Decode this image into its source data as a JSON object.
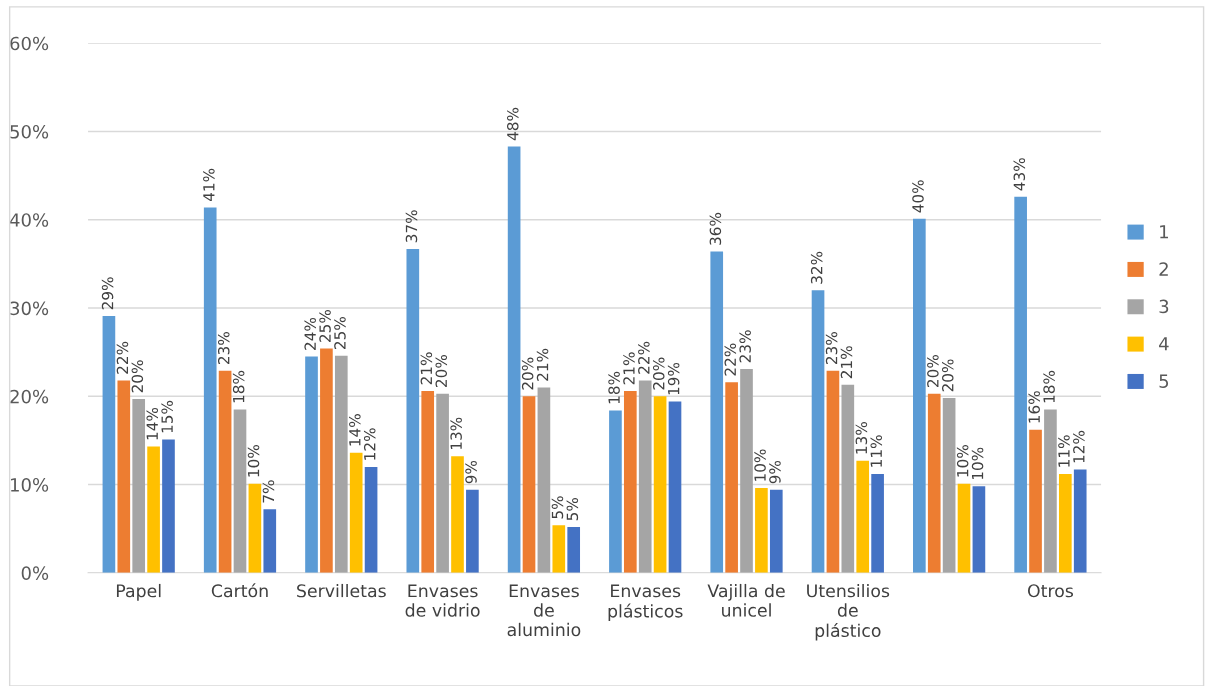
{
  "chart_data": {
    "type": "bar",
    "categories": [
      "Papel",
      "Cartón",
      "Servilletas",
      "Envases\nde vidrio",
      "Envases\nde\naluminio",
      "Envases\nplásticos",
      "Vajilla de\nunicel",
      "Utensilios\nde\nplástico",
      null,
      "Otros"
    ],
    "series": [
      {
        "name": "1",
        "color": "#5b9bd5",
        "values": [
          29.1,
          41.4,
          24.5,
          36.7,
          48.3,
          18.4,
          36.4,
          32.0,
          40.1,
          42.6
        ],
        "value_labels": [
          "29%",
          "41%",
          "24%",
          "37%",
          "48%",
          "18%",
          "36%",
          "32%",
          "40%",
          "43%"
        ]
      },
      {
        "name": "2",
        "color": "#ed7d31",
        "values": [
          21.8,
          22.9,
          25.4,
          20.6,
          20.0,
          20.6,
          21.6,
          22.9,
          20.3,
          16.2
        ],
        "value_labels": [
          "22%",
          "23%",
          "25%",
          "21%",
          "20%",
          "21%",
          "22%",
          "23%",
          "20%",
          "16%"
        ]
      },
      {
        "name": "3",
        "color": "#a5a5a5",
        "values": [
          19.7,
          18.5,
          24.6,
          20.3,
          21.0,
          21.8,
          23.1,
          21.3,
          19.8,
          18.5
        ],
        "value_labels": [
          "20%",
          "18%",
          "25%",
          "20%",
          "21%",
          "22%",
          "23%",
          "21%",
          "20%",
          "18%"
        ]
      },
      {
        "name": "4",
        "color": "#ffc000",
        "values": [
          14.3,
          10.1,
          13.6,
          13.2,
          5.4,
          20.0,
          9.6,
          12.7,
          10.1,
          11.2
        ],
        "value_labels": [
          "14%",
          "10%",
          "14%",
          "13%",
          "5%",
          "20%",
          "10%",
          "13%",
          "10%",
          "11%"
        ]
      },
      {
        "name": "5",
        "color": "#4472c4",
        "values": [
          15.1,
          7.2,
          12.0,
          9.4,
          5.2,
          19.4,
          9.4,
          11.2,
          9.8,
          11.7
        ],
        "value_labels": [
          "15%",
          "7%",
          "12%",
          "9%",
          "5%",
          "19%",
          "9%",
          "11%",
          "10%",
          "12%"
        ]
      }
    ],
    "ylim": [
      0,
      60
    ],
    "yticks": [
      {
        "value": 0,
        "label": "0%"
      },
      {
        "value": 10,
        "label": "10%"
      },
      {
        "value": 20,
        "label": "20%"
      },
      {
        "value": 30,
        "label": "30%"
      },
      {
        "value": 40,
        "label": "40%"
      },
      {
        "value": 50,
        "label": "50%"
      },
      {
        "value": 60,
        "label": "60%"
      }
    ],
    "grid": "y",
    "legend": "right"
  }
}
